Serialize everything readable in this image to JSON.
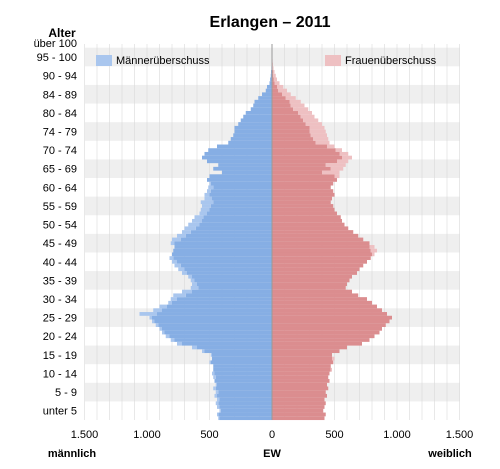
{
  "chart_data": {
    "type": "bar",
    "orientation": "horizontal",
    "layout": "population-pyramid",
    "title": "Erlangen – 2011",
    "y_axis_title": "Alter",
    "x_left_label": "männlich",
    "x_center_label": "EW",
    "x_right_label": "weiblich",
    "x_tick_labels": [
      "1.500",
      "1.000",
      "500",
      "0",
      "500",
      "1.000",
      "1.500"
    ],
    "x_tick_values": [
      -1500,
      -1000,
      -500,
      0,
      500,
      1000,
      1500
    ],
    "xlim": [
      -1500,
      1500
    ],
    "age_range": [
      0,
      101
    ],
    "age_labels": [
      "über 100",
      "95 - 100",
      "90 - 94",
      "84 - 89",
      "80 - 84",
      "74 - 79",
      "70 - 74",
      "65 - 69",
      "60 - 64",
      "55 - 59",
      "50 - 54",
      "45 - 49",
      "40 - 44",
      "35 - 39",
      "30 - 34",
      "25 - 29",
      "20 - 24",
      "15 - 19",
      "10 - 14",
      "5 - 9",
      "unter 5"
    ],
    "legend": [
      {
        "label": "Männerüberschuss",
        "color": "#a9c6ee",
        "position": "top-left"
      },
      {
        "label": "Frauenüberschuss",
        "color": "#eec0c2",
        "position": "top-right"
      }
    ],
    "colors": {
      "male": "#86aee4",
      "female": "#db8d8f",
      "male_excess": "#a9c6ee",
      "female_excess": "#eec0c2",
      "band": "#efefef",
      "grid": "#d9d9d9"
    },
    "ages": [
      0,
      1,
      2,
      3,
      4,
      5,
      6,
      7,
      8,
      9,
      10,
      11,
      12,
      13,
      14,
      15,
      16,
      17,
      18,
      19,
      20,
      21,
      22,
      23,
      24,
      25,
      26,
      27,
      28,
      29,
      30,
      31,
      32,
      33,
      34,
      35,
      36,
      37,
      38,
      39,
      40,
      41,
      42,
      43,
      44,
      45,
      46,
      47,
      48,
      49,
      50,
      51,
      52,
      53,
      54,
      55,
      56,
      57,
      58,
      59,
      60,
      61,
      62,
      63,
      64,
      65,
      66,
      67,
      68,
      69,
      70,
      71,
      72,
      73,
      74,
      75,
      76,
      77,
      78,
      79,
      80,
      81,
      82,
      83,
      84,
      85,
      86,
      87,
      88,
      89,
      90,
      91,
      92,
      93,
      94,
      95,
      96,
      97,
      98,
      99,
      100
    ],
    "series": [
      {
        "name": "männlich",
        "values": [
          430,
          440,
          420,
          440,
          450,
          440,
          460,
          450,
          470,
          450,
          460,
          470,
          480,
          470,
          470,
          500,
          480,
          490,
          560,
          640,
          760,
          810,
          850,
          880,
          900,
          930,
          960,
          980,
          1060,
          950,
          900,
          830,
          810,
          790,
          720,
          650,
          640,
          650,
          670,
          720,
          750,
          780,
          800,
          820,
          800,
          790,
          780,
          810,
          800,
          760,
          720,
          700,
          670,
          640,
          620,
          580,
          570,
          560,
          570,
          540,
          540,
          520,
          510,
          500,
          520,
          500,
          400,
          470,
          430,
          520,
          560,
          540,
          510,
          440,
          350,
          330,
          310,
          300,
          300,
          270,
          250,
          230,
          210,
          170,
          150,
          140,
          110,
          80,
          50,
          40,
          20,
          15,
          10,
          8,
          5,
          3,
          2,
          1,
          1,
          1,
          1
        ]
      },
      {
        "name": "weiblich",
        "values": [
          420,
          430,
          410,
          420,
          430,
          420,
          440,
          430,
          450,
          440,
          460,
          450,
          460,
          480,
          470,
          490,
          500,
          480,
          540,
          600,
          720,
          780,
          820,
          860,
          880,
          910,
          940,
          960,
          920,
          880,
          840,
          800,
          760,
          690,
          640,
          590,
          600,
          620,
          640,
          680,
          700,
          730,
          760,
          790,
          820,
          840,
          820,
          780,
          730,
          690,
          650,
          610,
          580,
          560,
          550,
          520,
          500,
          490,
          470,
          480,
          500,
          490,
          470,
          490,
          520,
          540,
          540,
          570,
          590,
          610,
          640,
          610,
          560,
          500,
          460,
          450,
          440,
          430,
          420,
          400,
          370,
          340,
          320,
          290,
          260,
          230,
          190,
          150,
          120,
          90,
          60,
          40,
          30,
          20,
          12,
          8,
          5,
          3,
          2,
          1,
          1
        ]
      }
    ]
  }
}
